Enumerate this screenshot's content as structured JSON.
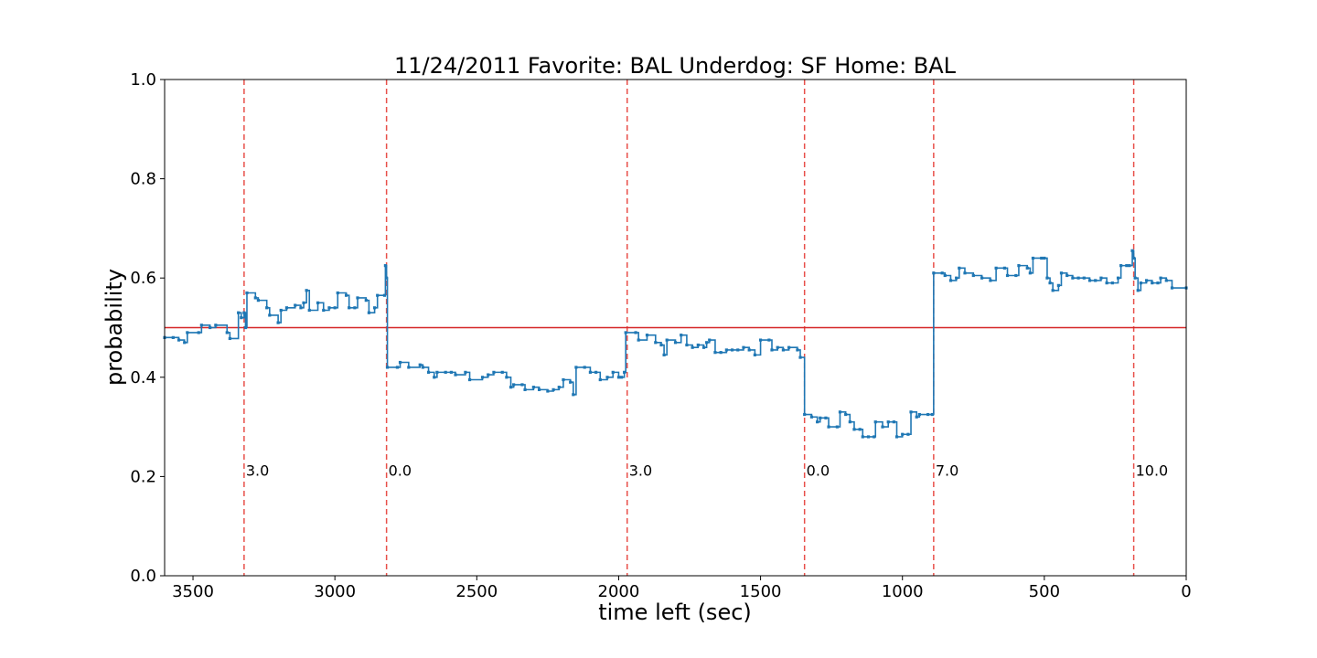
{
  "chart_data": {
    "type": "line",
    "title": "11/24/2011 Favorite: BAL Underdog: SF Home: BAL",
    "xlabel": "time left (sec)",
    "ylabel": "probability",
    "xlim": [
      3600,
      0
    ],
    "ylim": [
      0.0,
      1.0
    ],
    "x_ticks": [
      3500,
      3000,
      2500,
      2000,
      1500,
      1000,
      500,
      0
    ],
    "x_tick_labels": [
      "3500",
      "3000",
      "2500",
      "2000",
      "1500",
      "1000",
      "500",
      "0"
    ],
    "y_ticks": [
      0.0,
      0.2,
      0.4,
      0.6,
      0.8,
      1.0
    ],
    "y_tick_labels": [
      "0.0",
      "0.2",
      "0.4",
      "0.6",
      "0.8",
      "1.0"
    ],
    "grid": false,
    "series": [
      {
        "color": "#1f77b4",
        "points": [
          [
            3600,
            0.48
          ],
          [
            3570,
            0.48
          ],
          [
            3550,
            0.475
          ],
          [
            3530,
            0.47
          ],
          [
            3520,
            0.49
          ],
          [
            3480,
            0.49
          ],
          [
            3470,
            0.505
          ],
          [
            3440,
            0.5
          ],
          [
            3420,
            0.505
          ],
          [
            3380,
            0.49
          ],
          [
            3370,
            0.478
          ],
          [
            3340,
            0.53
          ],
          [
            3330,
            0.52
          ],
          [
            3320,
            0.53
          ],
          [
            3315,
            0.5
          ],
          [
            3310,
            0.57
          ],
          [
            3280,
            0.56
          ],
          [
            3270,
            0.555
          ],
          [
            3240,
            0.54
          ],
          [
            3230,
            0.525
          ],
          [
            3200,
            0.51
          ],
          [
            3190,
            0.535
          ],
          [
            3170,
            0.54
          ],
          [
            3140,
            0.545
          ],
          [
            3120,
            0.54
          ],
          [
            3110,
            0.55
          ],
          [
            3100,
            0.575
          ],
          [
            3090,
            0.535
          ],
          [
            3060,
            0.55
          ],
          [
            3040,
            0.535
          ],
          [
            3020,
            0.54
          ],
          [
            3000,
            0.54
          ],
          [
            2990,
            0.57
          ],
          [
            2960,
            0.565
          ],
          [
            2950,
            0.54
          ],
          [
            2930,
            0.54
          ],
          [
            2920,
            0.56
          ],
          [
            2890,
            0.555
          ],
          [
            2880,
            0.53
          ],
          [
            2860,
            0.54
          ],
          [
            2850,
            0.565
          ],
          [
            2825,
            0.565
          ],
          [
            2822,
            0.625
          ],
          [
            2818,
            0.6
          ],
          [
            2815,
            0.42
          ],
          [
            2780,
            0.42
          ],
          [
            2770,
            0.43
          ],
          [
            2740,
            0.42
          ],
          [
            2700,
            0.425
          ],
          [
            2690,
            0.42
          ],
          [
            2670,
            0.41
          ],
          [
            2650,
            0.4
          ],
          [
            2640,
            0.41
          ],
          [
            2610,
            0.41
          ],
          [
            2590,
            0.41
          ],
          [
            2575,
            0.405
          ],
          [
            2540,
            0.41
          ],
          [
            2525,
            0.395
          ],
          [
            2480,
            0.4
          ],
          [
            2460,
            0.405
          ],
          [
            2440,
            0.41
          ],
          [
            2410,
            0.41
          ],
          [
            2395,
            0.4
          ],
          [
            2380,
            0.38
          ],
          [
            2370,
            0.385
          ],
          [
            2340,
            0.385
          ],
          [
            2330,
            0.375
          ],
          [
            2300,
            0.38
          ],
          [
            2280,
            0.375
          ],
          [
            2250,
            0.372
          ],
          [
            2230,
            0.375
          ],
          [
            2210,
            0.38
          ],
          [
            2195,
            0.395
          ],
          [
            2170,
            0.39
          ],
          [
            2160,
            0.365
          ],
          [
            2150,
            0.42
          ],
          [
            2120,
            0.42
          ],
          [
            2100,
            0.41
          ],
          [
            2080,
            0.41
          ],
          [
            2065,
            0.395
          ],
          [
            2040,
            0.4
          ],
          [
            2020,
            0.41
          ],
          [
            2000,
            0.4
          ],
          [
            1990,
            0.4
          ],
          [
            1980,
            0.41
          ],
          [
            1975,
            0.49
          ],
          [
            1940,
            0.49
          ],
          [
            1930,
            0.475
          ],
          [
            1900,
            0.485
          ],
          [
            1870,
            0.47
          ],
          [
            1850,
            0.465
          ],
          [
            1840,
            0.445
          ],
          [
            1830,
            0.475
          ],
          [
            1800,
            0.47
          ],
          [
            1780,
            0.485
          ],
          [
            1760,
            0.465
          ],
          [
            1740,
            0.46
          ],
          [
            1720,
            0.465
          ],
          [
            1700,
            0.46
          ],
          [
            1690,
            0.47
          ],
          [
            1680,
            0.475
          ],
          [
            1660,
            0.45
          ],
          [
            1640,
            0.45
          ],
          [
            1620,
            0.455
          ],
          [
            1600,
            0.455
          ],
          [
            1580,
            0.455
          ],
          [
            1560,
            0.46
          ],
          [
            1540,
            0.455
          ],
          [
            1520,
            0.445
          ],
          [
            1500,
            0.475
          ],
          [
            1470,
            0.475
          ],
          [
            1460,
            0.455
          ],
          [
            1440,
            0.46
          ],
          [
            1420,
            0.455
          ],
          [
            1400,
            0.46
          ],
          [
            1370,
            0.455
          ],
          [
            1360,
            0.44
          ],
          [
            1345,
            0.325
          ],
          [
            1320,
            0.32
          ],
          [
            1300,
            0.31
          ],
          [
            1290,
            0.318
          ],
          [
            1270,
            0.318
          ],
          [
            1260,
            0.3
          ],
          [
            1230,
            0.3
          ],
          [
            1220,
            0.33
          ],
          [
            1200,
            0.325
          ],
          [
            1185,
            0.31
          ],
          [
            1170,
            0.295
          ],
          [
            1150,
            0.295
          ],
          [
            1140,
            0.28
          ],
          [
            1120,
            0.28
          ],
          [
            1100,
            0.28
          ],
          [
            1095,
            0.31
          ],
          [
            1070,
            0.3
          ],
          [
            1050,
            0.31
          ],
          [
            1030,
            0.31
          ],
          [
            1020,
            0.28
          ],
          [
            1000,
            0.285
          ],
          [
            980,
            0.285
          ],
          [
            970,
            0.33
          ],
          [
            950,
            0.32
          ],
          [
            940,
            0.325
          ],
          [
            910,
            0.325
          ],
          [
            895,
            0.325
          ],
          [
            890,
            0.61
          ],
          [
            860,
            0.61
          ],
          [
            850,
            0.605
          ],
          [
            830,
            0.595
          ],
          [
            810,
            0.6
          ],
          [
            800,
            0.62
          ],
          [
            780,
            0.61
          ],
          [
            750,
            0.605
          ],
          [
            720,
            0.6
          ],
          [
            690,
            0.595
          ],
          [
            670,
            0.62
          ],
          [
            640,
            0.62
          ],
          [
            630,
            0.605
          ],
          [
            600,
            0.605
          ],
          [
            590,
            0.625
          ],
          [
            560,
            0.62
          ],
          [
            550,
            0.61
          ],
          [
            540,
            0.64
          ],
          [
            510,
            0.64
          ],
          [
            500,
            0.64
          ],
          [
            490,
            0.6
          ],
          [
            480,
            0.59
          ],
          [
            470,
            0.575
          ],
          [
            450,
            0.585
          ],
          [
            440,
            0.61
          ],
          [
            420,
            0.605
          ],
          [
            400,
            0.6
          ],
          [
            380,
            0.6
          ],
          [
            360,
            0.6
          ],
          [
            340,
            0.595
          ],
          [
            320,
            0.595
          ],
          [
            300,
            0.6
          ],
          [
            280,
            0.59
          ],
          [
            260,
            0.59
          ],
          [
            240,
            0.6
          ],
          [
            230,
            0.625
          ],
          [
            210,
            0.625
          ],
          [
            200,
            0.625
          ],
          [
            190,
            0.655
          ],
          [
            185,
            0.64
          ],
          [
            180,
            0.6
          ],
          [
            170,
            0.575
          ],
          [
            160,
            0.59
          ],
          [
            140,
            0.595
          ],
          [
            120,
            0.59
          ],
          [
            100,
            0.59
          ],
          [
            90,
            0.6
          ],
          [
            70,
            0.595
          ],
          [
            50,
            0.58
          ],
          [
            0,
            0.58
          ]
        ]
      }
    ],
    "reference_line": {
      "y": 0.5,
      "color": "#d62728"
    },
    "vertical_markers": [
      {
        "x": 3320,
        "label": "3.0"
      },
      {
        "x": 2818,
        "label": "0.0"
      },
      {
        "x": 1970,
        "label": "3.0"
      },
      {
        "x": 1345,
        "label": "0.0"
      },
      {
        "x": 890,
        "label": "7.0"
      },
      {
        "x": 185,
        "label": "10.0"
      }
    ],
    "marker_color": "#e8504a",
    "marker_label_y": 0.2
  }
}
